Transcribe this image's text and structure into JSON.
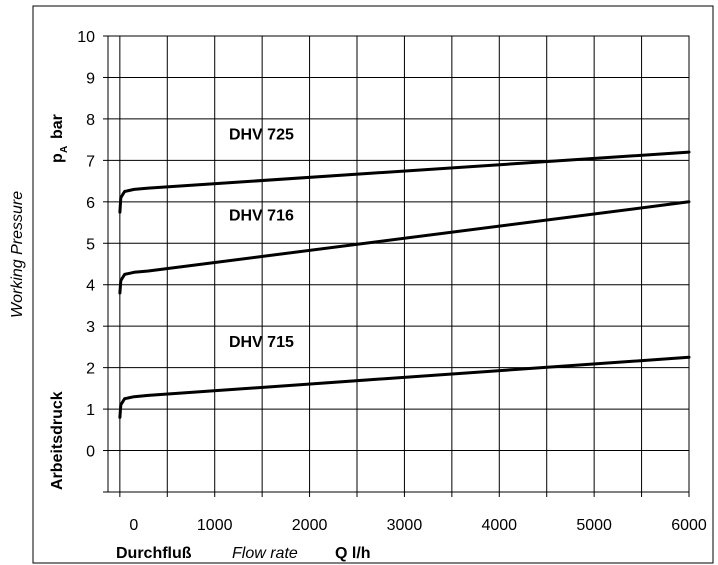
{
  "chart_data": {
    "type": "line",
    "x_ticks": [
      "0",
      "1000",
      "2000",
      "3000",
      "4000",
      "5000",
      "6000"
    ],
    "y_ticks": [
      "0",
      "1",
      "2",
      "3",
      "4",
      "5",
      "6",
      "7",
      "8",
      "9",
      "10"
    ],
    "xlim": [
      -125,
      6000
    ],
    "ylim": [
      -1,
      10
    ],
    "grid": true,
    "xlabel": {
      "part1": "Durchfluß",
      "part2": "Flow rate",
      "part3": "Q l/h"
    },
    "ylabel": {
      "units": "p",
      "subscript": "A",
      "units_bar": "bar",
      "german": "Arbeitsdruck",
      "english": "Working Pressure"
    },
    "series": [
      {
        "name": "DHV 725",
        "x": [
          0,
          10,
          50,
          150,
          300,
          6000
        ],
        "y": [
          5.75,
          6.1,
          6.25,
          6.3,
          6.33,
          7.2
        ]
      },
      {
        "name": "DHV 716",
        "x": [
          0,
          10,
          50,
          150,
          300,
          6000
        ],
        "y": [
          3.8,
          4.1,
          4.25,
          4.3,
          4.33,
          6.0
        ]
      },
      {
        "name": "DHV 715",
        "x": [
          0,
          10,
          50,
          150,
          300,
          6000
        ],
        "y": [
          0.8,
          1.1,
          1.25,
          1.3,
          1.33,
          2.25
        ]
      }
    ]
  }
}
